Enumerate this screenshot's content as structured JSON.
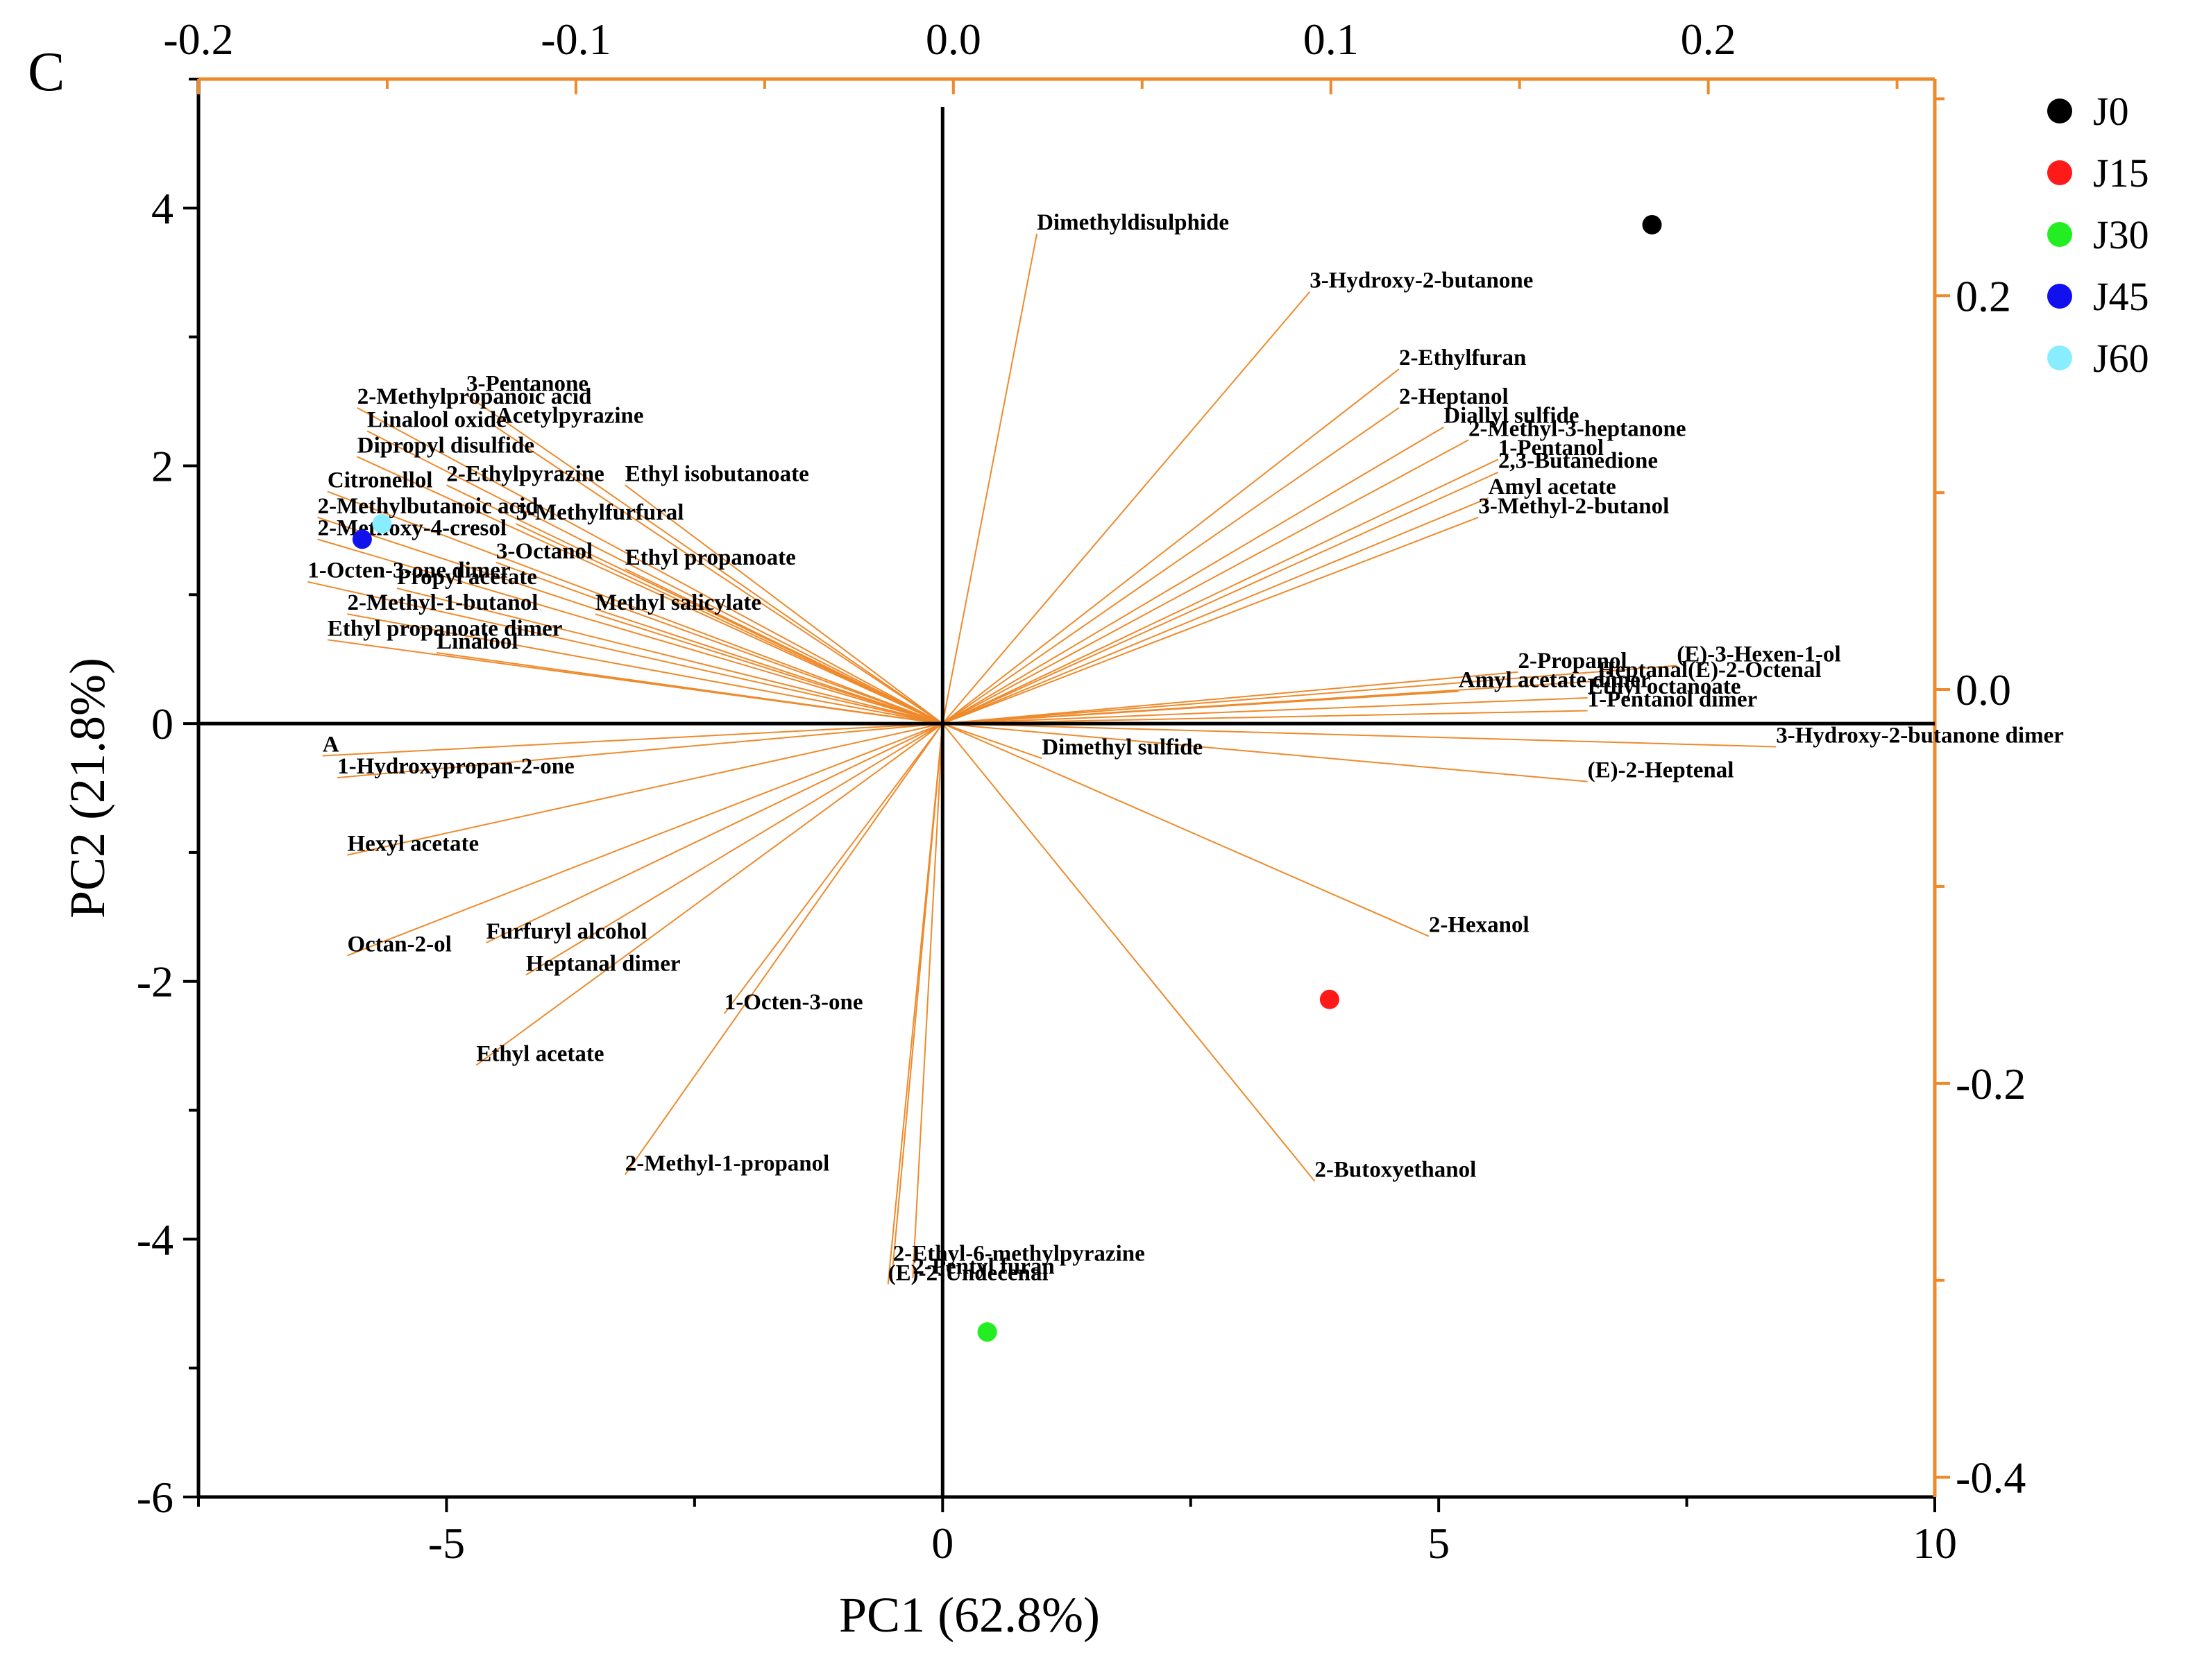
{
  "panel_label": "C",
  "chart_data": {
    "type": "scatter",
    "subtype": "biplot",
    "xlabel": "PC1 (62.8%)",
    "ylabel": "PC2 (21.8%)",
    "xlim": [
      -7.5,
      10
    ],
    "ylim": [
      -6,
      5
    ],
    "x_ticks": [
      "-5",
      "0",
      "5",
      "10"
    ],
    "y_ticks": [
      "-6",
      "-4",
      "-2",
      "0",
      "2",
      "4"
    ],
    "top_axis": {
      "range": [
        -0.2,
        0.26
      ],
      "ticks": [
        "-0.2",
        "-0.1",
        "0.0",
        "0.1",
        "0.2"
      ]
    },
    "right_axis": {
      "range": [
        -0.41,
        0.31
      ],
      "ticks": [
        "-0.4",
        "-0.2",
        "0.0",
        "0.2"
      ]
    },
    "colors": {
      "loading": "#ee8a2b",
      "axis": "#000000",
      "secondary_axis": "#ee8a2b"
    },
    "samples": [
      {
        "name": "J0",
        "x": 7.15,
        "y": 3.87,
        "color": "#000000"
      },
      {
        "name": "J15",
        "x": 3.9,
        "y": -2.14,
        "color": "#ff1a1a"
      },
      {
        "name": "J30",
        "x": 0.45,
        "y": -4.72,
        "color": "#22ee22"
      },
      {
        "name": "J45",
        "x": -5.85,
        "y": 1.43,
        "color": "#1111ee"
      },
      {
        "name": "J60",
        "x": -5.65,
        "y": 1.55,
        "color": "#88eeff"
      }
    ],
    "loadings": [
      {
        "label": "Dimethyldisulphide",
        "x": 0.95,
        "y": 3.8
      },
      {
        "label": "3-Hydroxy-2-butanone",
        "x": 3.7,
        "y": 3.35
      },
      {
        "label": "2-Ethylfuran",
        "x": 4.6,
        "y": 2.75
      },
      {
        "label": "2-Heptanol",
        "x": 4.6,
        "y": 2.45
      },
      {
        "label": "Diallyl sulfide",
        "x": 5.05,
        "y": 2.3
      },
      {
        "label": "2-Methyl-3-heptanone",
        "x": 5.3,
        "y": 2.2
      },
      {
        "label": "1-Pentanol",
        "x": 5.6,
        "y": 2.05
      },
      {
        "label": "2,3-Butanedione",
        "x": 5.6,
        "y": 1.95
      },
      {
        "label": "Amyl acetate",
        "x": 5.5,
        "y": 1.75
      },
      {
        "label": "3-Methyl-2-butanol",
        "x": 5.4,
        "y": 1.6
      },
      {
        "label": "(E)-3-Hexen-1-ol",
        "x": 7.4,
        "y": 0.45
      },
      {
        "label": "2-Propanol",
        "x": 5.8,
        "y": 0.4
      },
      {
        "label": "Heptanal(E)-2-Octenal",
        "x": 6.6,
        "y": 0.33
      },
      {
        "label": "Amyl acetate dimer",
        "x": 5.2,
        "y": 0.25
      },
      {
        "label": "Ethyl octanoate",
        "x": 6.5,
        "y": 0.2
      },
      {
        "label": "1-Pentanol dimer",
        "x": 6.5,
        "y": 0.1
      },
      {
        "label": "Dimethyl sulfide",
        "x": 1.0,
        "y": -0.27
      },
      {
        "label": "3-Hydroxy-2-butanone dimer",
        "x": 8.4,
        "y": -0.18
      },
      {
        "label": "(E)-2-Heptenal",
        "x": 6.5,
        "y": -0.45
      },
      {
        "label": "2-Hexanol",
        "x": 4.9,
        "y": -1.65
      },
      {
        "label": "2-Butoxyethanol",
        "x": 3.75,
        "y": -3.55
      },
      {
        "label": "3-Pentanone",
        "x": -4.8,
        "y": 2.55
      },
      {
        "label": "2-Methylpropanoic acid",
        "x": -5.9,
        "y": 2.45
      },
      {
        "label": "Acetylpyrazine",
        "x": -4.5,
        "y": 2.3
      },
      {
        "label": "Linalool oxide",
        "x": -5.8,
        "y": 2.27
      },
      {
        "label": "Dipropyl disulfide",
        "x": -5.9,
        "y": 2.07
      },
      {
        "label": "Citronellol",
        "x": -6.2,
        "y": 1.8
      },
      {
        "label": "2-Ethylpyrazine",
        "x": -5.0,
        "y": 1.85
      },
      {
        "label": "Ethyl isobutanoate",
        "x": -3.2,
        "y": 1.85
      },
      {
        "label": "5-Methylfurfural",
        "x": -4.3,
        "y": 1.55
      },
      {
        "label": "2-Methylbutanoic acid",
        "x": -6.3,
        "y": 1.6
      },
      {
        "label": "2-Methoxy-4-cresol",
        "x": -6.3,
        "y": 1.43
      },
      {
        "label": "3-Octanol",
        "x": -4.5,
        "y": 1.25
      },
      {
        "label": "Ethyl propanoate",
        "x": -3.2,
        "y": 1.2
      },
      {
        "label": "1-Octen-3-one dimer",
        "x": -6.4,
        "y": 1.1
      },
      {
        "label": "Propyl acetate",
        "x": -5.5,
        "y": 1.05
      },
      {
        "label": "Methyl salicylate",
        "x": -3.5,
        "y": 0.85
      },
      {
        "label": "2-Methyl-1-butanol",
        "x": -6.0,
        "y": 0.85
      },
      {
        "label": "Ethyl propanoate dimer",
        "x": -6.2,
        "y": 0.65
      },
      {
        "label": "Linalool",
        "x": -5.1,
        "y": 0.55
      },
      {
        "label": "A",
        "x": -6.25,
        "y": -0.25
      },
      {
        "label": "1-Hydroxypropan-2-one",
        "x": -6.1,
        "y": -0.42
      },
      {
        "label": "Hexyl acetate",
        "x": -6.0,
        "y": -1.02
      },
      {
        "label": "Octan-2-ol",
        "x": -6.0,
        "y": -1.8
      },
      {
        "label": "Furfuryl alcohol",
        "x": -4.6,
        "y": -1.7
      },
      {
        "label": "Heptanal dimer",
        "x": -4.2,
        "y": -1.95
      },
      {
        "label": "Ethyl acetate",
        "x": -4.7,
        "y": -2.65
      },
      {
        "label": "1-Octen-3-one",
        "x": -2.2,
        "y": -2.25
      },
      {
        "label": "2-Methyl-1-propanol",
        "x": -3.2,
        "y": -3.5
      },
      {
        "label": "2-Ethyl-6-methylpyrazine",
        "x": -0.5,
        "y": -4.2
      },
      {
        "label": "2-Pentyl furan",
        "x": -0.3,
        "y": -4.3
      },
      {
        "label": "(E)-2-Undecenal",
        "x": -0.55,
        "y": -4.35
      }
    ]
  }
}
